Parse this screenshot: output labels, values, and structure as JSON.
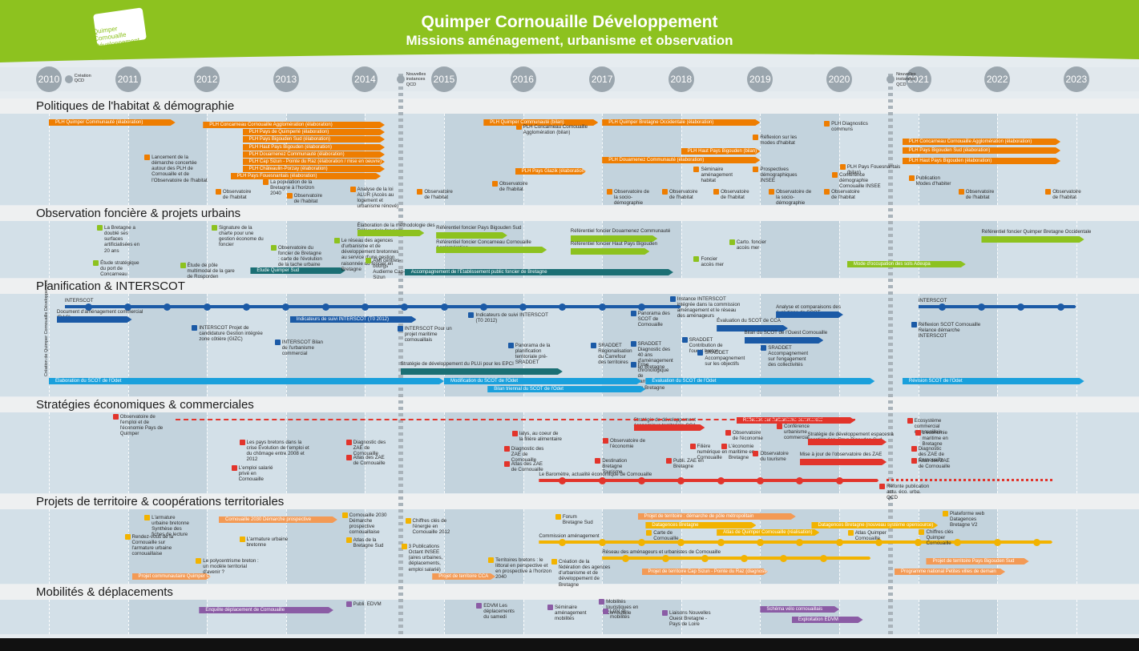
{
  "header": {
    "logo": "Quimper Cornouaille Développement",
    "title": "Quimper Cornouaille Développement",
    "subtitle": "Missions aménagement, urbanisme et observation"
  },
  "years": [
    "2010",
    "2011",
    "2012",
    "2013",
    "2014",
    "2015",
    "2016",
    "2017",
    "2018",
    "2019",
    "2020",
    "2021",
    "2022",
    "2023"
  ],
  "milestones": [
    "Création QCD",
    "Nouvelles instances QCD",
    "Nouvelles instances QCD"
  ],
  "sections": [
    {
      "title": "Politiques de l'habitat & démographie",
      "items": [
        "PLH Quimper Communauté (élaboration)",
        "PLH Concarneau Cornouaille Agglomération (élaboration)",
        "PLH Pays de Quimperlé (élaboration)",
        "PLH Pays Bigouden Sud (élaboration)",
        "PLH Haut Pays Bigouden (élaboration)",
        "PLH Douarnenez Communauté (élaboration)",
        "PLH Cap Sizun - Pointe du Raz (élaboration / mise en oeuvre)",
        "PLH Châteaulin-Porzay (élaboration)",
        "PLH Pays Fouesnantais (élaboration)",
        "PLH Quimper Communauté (bilan)",
        "PLH Concarneau Cornouaille Agglomération (bilan)",
        "PLH Quimper Bretagne Occidentale (élaboration)",
        "PLH Haut Pays Bigouden (bilan)",
        "PLH Douarnenez Communauté (élaboration)",
        "PLH Pays Glazik (élaboration)",
        "PLH Diagnostics communs",
        "Réflexion sur les modes d'habitat",
        "PLH Pays Fouesnantais (bilan)",
        "PLH Concarneau Cornouaille Agglomération (élaboration)",
        "PLH Pays Bigouden Sud (élaboration)",
        "PLH Haut Pays Bigouden (élaboration)",
        "Lancement de la démarche concertée autour des PLH de Cornouaille et de l'Observatoire de l'habitat",
        "La population de la Bretagne à l'horizon 2040",
        "Analyse de la loi ALUR (Accès au logement et urbanisme rénové)",
        "Observatoire de l'habitat",
        "Observatoire de l'habitat",
        "Observatoire de l'habitat",
        "Observatoire de l'habitat",
        "Observatoire de l'habitat",
        "Observatoire de l'habitat",
        "Observatoire de l'habitat",
        "Observatoire de l'habitat",
        "Observatoire de l'habitat",
        "Observatoire de la socio-démographie",
        "Observatoire de la socio-démographie",
        "Séminaire aménagement habitat",
        "Prospectives démographiques INSEE",
        "Conférence démographie Cornouaille INSEE",
        "Publication Modes d'habiter"
      ]
    },
    {
      "title": "Observation foncière & projets urbains",
      "items": [
        "La Bretagne a doublé ses surfaces artificialisées en 20 ans",
        "Étude stratégique du port de Concarneau",
        "Étude de pôle multimodal de la gare de Rosporden",
        "Signature de la charte pour une gestion économe du foncier",
        "Observatoire du foncier de Bretagne : carte de l'évolution de la tache urbaine",
        "Étude Quimper Sud",
        "Le réseau des agences d'urbanisme et de développement bretonnes au service d'une gestion raisonnée du foncier en Bretagne",
        "Élaboration de la méthodologie des Référentiels fonciers",
        "AMI centres-bourgs Audierne Cap-Sizun",
        "Référentiel foncier Pays Bigouden Sud",
        "Référentiel foncier Concarneau Cornouaille Agglomération",
        "Accompagnement de l'Établissement public foncier de Bretagne",
        "Référentiel foncier Douarnenez Communauté",
        "Référentiel foncier Haut Pays Bigouden",
        "Carto. foncier accès mer",
        "Foncier accès mer",
        "Mode d'occupation des sols Adeupa",
        "Référentiel foncier Quimper Bretagne Occidentale"
      ]
    },
    {
      "title": "Planification & INTERSCOT",
      "items": [
        "Création de Quimper Cornouaille Développement",
        "INTERSCOT",
        "Document d'aménagement commercial (DAC)",
        "Instance INTERSCOT intégrée dans la commission aménagement et le réseau des aménageurs",
        "Indicateurs de suivi INTERSCOT (T0 2012)",
        "Indicateurs de suivi INTERSCOT (T0 2012)",
        "INTERSCOT Projet de candidature Gestion intégrée zone côtière (GIZC)",
        "INTERSCOT Pour un projet maritime cornouaillais",
        "INTERSCOT Bilan de l'urbanisme commercial",
        "Panorama des SCOT de Cornouaille",
        "Évaluation du SCOT de CCA",
        "Analyse et comparaisons des évolutions de SCOT",
        "Bilan du SCOT de l'Ouest Cornouaille",
        "INTERSCOT",
        "Réflexion SCOT Cornouaille Relance démarche INTERSCOT",
        "Panorama de la planification territoriale pré-SRADDET",
        "SRADDET Régionalisation du Carrefour des territoires",
        "SRADDET Diagnostic des 40 ans d'aménagement en Bretagne",
        "Frise chronologique de l'aménagement en Bretagne",
        "SRADDET Contribution de l'ouest breton",
        "SRADDET Accompagnement sur les objectifs",
        "SRADDET Accompagnement sur l'engagement des collectivités",
        "Stratégie de développement du PLUi pour les EPCI",
        "Élaboration du SCOT de l'Odet",
        "Modification du SCOT de l'Odet",
        "Bilan triennal du SCOT de l'Odet",
        "Évaluation du SCOT de l'Odet",
        "Révision SCOT de l'Odet"
      ]
    },
    {
      "title": "Stratégies économiques & commerciales",
      "items": [
        "Observatoire de l'emploi et de l'économie Pays de Quimper",
        "Les pays bretons dans la crise Évolution de l'emploi et du chômage entre 2008 et 2012",
        "Diagnostic des ZAE de Cornouaille",
        "Atlas des ZAE de Cornouaille",
        "L'emploi salarié privé en Cornouaille",
        "Ialys, au coeur de la filière alimentaire",
        "Diagnostic des ZAE de Cornouaille",
        "Atlas des ZAE de Cornouaille",
        "Stratégie de développement économique territoriale CCA",
        "Observatoire de l'économie",
        "Destination Bretagne Tourisme",
        "Publi. ZAE en Bretagne",
        "Filière numérique en Cornouaille",
        "L'économie maritime en Bretagne",
        "Réflexion sur l'urbanisme commercial",
        "Observatoire de l'économie",
        "Observatoire du tourisme",
        "Conférence urbanisme commercial",
        "Stratégie de développement espaces à vocation éco. Pays Bigouden Sud",
        "Mise à jour de l'observatoire des ZAE",
        "Ecosystème commercial cornouaillais",
        "L'économie maritime en Bretagne",
        "Diagnostic des ZAE de Cornouaille",
        "Atlas des ZAE de Cornouaille",
        "Le Baromètre, actualité économique de Cornouaille",
        "Refonte publication actu. éco. urba. QCD"
      ]
    },
    {
      "title": "Projets de territoire & coopérations territoriales",
      "items": [
        "L'armature urbaine bretonne Synthèse des fiches de lecture",
        "Rendez-vous de la Cornouaille sur l'armature urbaine cornouaillaise",
        "Cornouaille 2030 Démarche prospective",
        "Cornouaille 2030 Démarche prospective cornouaillaise",
        "Le polycentrisme breton : un modèle territorial d'avenir ?",
        "L'armature urbaine bretonne",
        "Projet communautaire Quimper Co.",
        "Atlas de la Bretagne Sud",
        "Chiffres clés de l'énergie en Cornouaille 2012",
        "3 Publications Octant INSEE (aires urbaines, déplacements, emploi salarié)",
        "Territoires bretons : le littoral en perspective et en prospective à l'horizon 2040",
        "Projet de territoire CCA",
        "Forum Bretagne Sud",
        "Commission aménagement",
        "Réseau des aménageurs et urbanistes de Cornouaille",
        "Création de la fédération des agences d'urbanisme et de développement de Bretagne",
        "Projet de territoire : démarche de pôle métropolitain",
        "Datagences Bretagne",
        "Carte de Cornouaille",
        "Atlas de Quimper Cornouaille (réalisation)",
        "Projet de territoire Cap Sizun - Pointe du Raz (diagnostic)",
        "Datagences Bretagne (nouveau système opensource)",
        "Atlas Quimper Cornouaille",
        "Plateforme web Datagences Bretagne V2",
        "Chiffres clés Quimper Cornouaille",
        "Projet de territoire Pays Bigouden Sud",
        "Programme national Petites villes de demain"
      ]
    },
    {
      "title": "Mobilités & déplacements",
      "items": [
        "Enquête déplacement de Cornouaille",
        "Publi. EDVM",
        "EDVM Les déplacements du samedi",
        "Séminaire aménagement mobilités",
        "Mobilités touristiques en Cornouaille",
        "LGV et mobilités",
        "Liaisons Nouvelles Ouest Bretagne - Pays de Loire",
        "Schéma vélo cornouaillais",
        "Exploitation EDVM"
      ]
    }
  ]
}
